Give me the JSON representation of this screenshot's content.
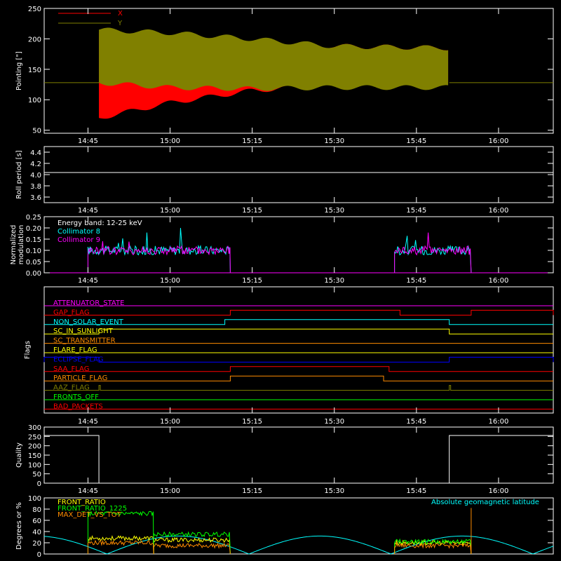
{
  "time_labels": [
    "14:45",
    "15:00",
    "15:15",
    "15:30",
    "15:45",
    "16:00"
  ],
  "colors": {
    "background": "#000000",
    "axis": "#ffffff",
    "x": "#ff0000",
    "y": "#808000",
    "cyan": "#00ffff",
    "magenta": "#ff00ff",
    "green": "#00ff00",
    "orange": "#ff8c00"
  },
  "chart_data": [
    {
      "type": "area",
      "ylabel": "Pointing [\"]",
      "xlim": [
        "14:37",
        "16:10"
      ],
      "ylim": [
        45,
        250
      ],
      "yticks": [
        50,
        100,
        150,
        200,
        250
      ],
      "legend": [
        "X",
        "Y"
      ],
      "legend_position": "top-left",
      "series": [
        {
          "name": "X",
          "baseline": 128,
          "active_range": [
            "14:47",
            "15:51"
          ],
          "envelope": {
            "time": [
              "14:47",
              "15:00",
              "15:15",
              "15:30",
              "15:51"
            ],
            "min": [
              70,
              95,
              115,
              125,
              125
            ],
            "max": [
              210,
              200,
              195,
              188,
              185
            ]
          }
        },
        {
          "name": "Y",
          "baseline": 128,
          "active_range": [
            "14:47",
            "15:51"
          ],
          "envelope": {
            "time": [
              "14:47",
              "15:00",
              "15:15",
              "15:30",
              "15:51"
            ],
            "min": [
              128,
              120,
              118,
              120,
              120
            ],
            "max": [
              215,
              210,
              200,
              188,
              185
            ]
          }
        }
      ]
    },
    {
      "type": "line",
      "ylabel": "Roll period [s]",
      "ylim": [
        3.5,
        4.5
      ],
      "yticks": [
        3.6,
        3.8,
        4.0,
        4.2,
        4.4
      ],
      "series": [
        {
          "values_constant": 4.0,
          "color": "#ffffff"
        }
      ]
    },
    {
      "type": "line",
      "ylabel": "Normalized modulation",
      "ylim": [
        0,
        0.25
      ],
      "yticks": [
        0.0,
        0.05,
        0.1,
        0.15,
        0.2,
        0.25
      ],
      "annotations": [
        "Energy band: 12-25 keV"
      ],
      "legend": [
        "Collimator 8",
        "Collimator 9"
      ],
      "series": [
        {
          "name": "Collimator 8",
          "color": "#00ffff",
          "segments": [
            [
              "14:45",
              "15:11",
              0.1
            ],
            [
              "15:41",
              "15:55",
              0.1
            ]
          ]
        },
        {
          "name": "Collimator 9",
          "color": "#ff00ff",
          "segments": [
            [
              "14:45",
              "15:11",
              0.1
            ],
            [
              "15:41",
              "15:55",
              0.1
            ]
          ]
        }
      ]
    },
    {
      "type": "flags",
      "ylabel": "Flags",
      "flags": [
        {
          "name": "ATTENUATOR_STATE",
          "color": "#ff00ff",
          "high": []
        },
        {
          "name": "GAP_FLAG",
          "color": "#ff0000",
          "high": [
            [
              "15:11",
              "15:42"
            ],
            [
              "15:55",
              "16:10"
            ]
          ]
        },
        {
          "name": "NON_SOLAR_EVENT",
          "color": "#00ffff",
          "high": [
            [
              "15:10",
              "15:51"
            ]
          ]
        },
        {
          "name": "SC_IN_SUNLIGHT",
          "color": "#ffff00",
          "high": [
            [
              "14:47",
              "15:51"
            ]
          ]
        },
        {
          "name": "SC_TRANSMITTER",
          "color": "#ff8c00",
          "high": []
        },
        {
          "name": "FLARE_FLAG",
          "color": "#ffff00",
          "high": []
        },
        {
          "name": "ECLIPSE_FLAG",
          "color": "#0000ff",
          "high": [
            [
              "14:37",
              "14:47"
            ],
            [
              "15:51",
              "16:10"
            ]
          ]
        },
        {
          "name": "SAA_FLAG",
          "color": "#ff0000",
          "high": [
            [
              "15:11",
              "15:40"
            ]
          ]
        },
        {
          "name": "PARTICLE_FLAG",
          "color": "#ff8c00",
          "high": [
            [
              "15:11",
              "15:39"
            ]
          ]
        },
        {
          "name": "AAZ_FLAG",
          "color": "#808000",
          "high": [
            [
              "14:47",
              "14:47"
            ],
            [
              "15:51",
              "15:51"
            ]
          ]
        },
        {
          "name": "FRONTS_OFF",
          "color": "#00ff00",
          "high": []
        },
        {
          "name": "BAD_PACKETS",
          "color": "#ff0000",
          "high": []
        }
      ]
    },
    {
      "type": "line",
      "ylabel": "Quality",
      "ylim": [
        0,
        300
      ],
      "yticks": [
        0,
        50,
        100,
        150,
        200,
        250,
        300
      ],
      "series": [
        {
          "color": "#ffffff",
          "points": [
            [
              "14:37",
              255
            ],
            [
              "14:47",
              255
            ],
            [
              "14:47",
              0
            ],
            [
              "15:51",
              0
            ],
            [
              "15:51",
              255
            ],
            [
              "16:10",
              255
            ]
          ]
        }
      ]
    },
    {
      "type": "line",
      "ylabel": "Degrees or %",
      "ylim": [
        0,
        100
      ],
      "yticks": [
        0,
        20,
        40,
        60,
        80,
        100
      ],
      "legend": [
        "FRONT_RATIO",
        "FRONT_RATIO_1225",
        "MAX_DET_VS_TOT"
      ],
      "annotations": [
        "Absolute geomagnetic latitude"
      ],
      "series": [
        {
          "name": "FRONT_RATIO",
          "color": "#ffff00",
          "segments": [
            [
              "14:45",
              "14:57",
              28
            ],
            [
              "14:57",
              "15:11",
              25
            ],
            [
              "15:41",
              "15:55",
              20
            ]
          ]
        },
        {
          "name": "FRONT_RATIO_1225",
          "color": "#00ff00",
          "segments": [
            [
              "14:45",
              "14:57",
              72
            ],
            [
              "14:57",
              "15:11",
              35
            ],
            [
              "15:41",
              "15:55",
              22
            ]
          ]
        },
        {
          "name": "MAX_DET_VS_TOT",
          "color": "#ff8c00",
          "segments": [
            [
              "14:45",
              "14:57",
              20
            ],
            [
              "14:57",
              "15:11",
              15
            ],
            [
              "15:41",
              "15:55",
              15
            ]
          ]
        },
        {
          "name": "Absolute geomagnetic latitude",
          "color": "#00ffff"
        }
      ]
    }
  ]
}
